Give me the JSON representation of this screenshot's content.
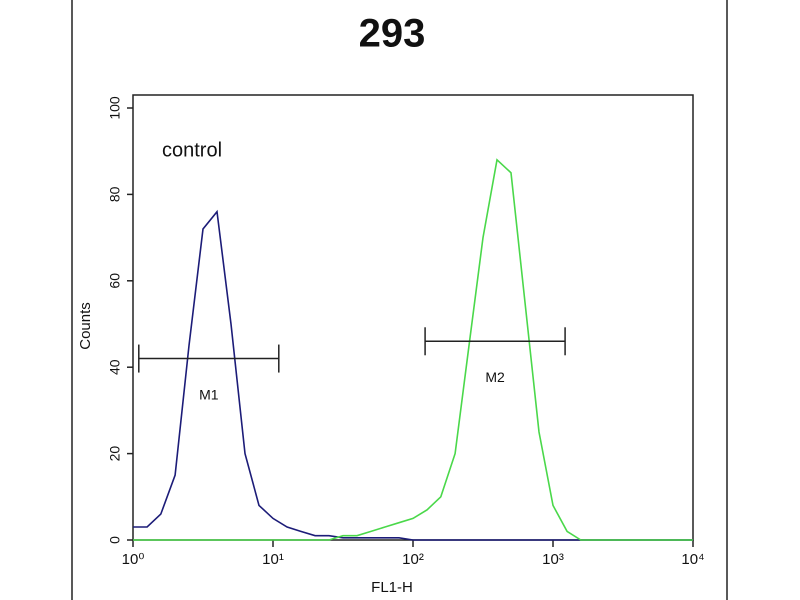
{
  "chart_data": {
    "type": "line",
    "title": "293",
    "x_label": "FL1-H",
    "y_label": "Counts",
    "annotation": "control",
    "xscale": "log",
    "xlim": [
      1,
      10000
    ],
    "xticks": [
      {
        "value": 1,
        "label": "10⁰"
      },
      {
        "value": 10,
        "label": "10¹"
      },
      {
        "value": 100,
        "label": "10²"
      },
      {
        "value": 1000,
        "label": "10³"
      },
      {
        "value": 10000,
        "label": "10⁴"
      }
    ],
    "ylim": [
      0,
      100
    ],
    "yticks": [
      0,
      20,
      40,
      60,
      80,
      100
    ],
    "x": [
      1,
      1.26,
      1.58,
      2,
      2.51,
      3.16,
      3.98,
      5.01,
      6.31,
      7.94,
      10,
      12.6,
      15.8,
      20,
      25.1,
      31.6,
      39.8,
      50.1,
      63.1,
      79.4,
      100,
      126,
      158,
      200,
      251,
      316,
      398,
      501,
      631,
      794,
      1000,
      1260,
      1580,
      2000,
      2510,
      3160,
      3980,
      5010,
      6310,
      7940,
      10000
    ],
    "series": [
      {
        "name": "control",
        "color": "#1c1c78",
        "values": [
          3,
          3,
          6,
          15,
          45,
          72,
          76,
          50,
          20,
          8,
          5,
          3,
          2,
          1,
          1,
          0.5,
          0.5,
          0.5,
          0.5,
          0.5,
          0,
          0,
          0,
          0,
          0,
          0,
          0,
          0,
          0,
          0,
          0,
          0,
          0,
          0,
          0,
          0,
          0,
          0,
          0,
          0,
          0
        ]
      },
      {
        "name": "293",
        "color": "#4ad84a",
        "values": [
          0,
          0,
          0,
          0,
          0,
          0,
          0,
          0,
          0,
          0,
          0,
          0,
          0,
          0,
          0,
          1,
          1,
          2,
          3,
          4,
          5,
          7,
          10,
          20,
          45,
          70,
          88,
          85,
          55,
          25,
          8,
          2,
          0,
          0,
          0,
          0,
          0,
          0,
          0,
          0,
          0
        ]
      }
    ],
    "gates": [
      {
        "label": "M1",
        "x": [
          1.1,
          11
        ],
        "y": 42
      },
      {
        "label": "M2",
        "x": [
          122,
          1220
        ],
        "y": 46
      }
    ]
  }
}
